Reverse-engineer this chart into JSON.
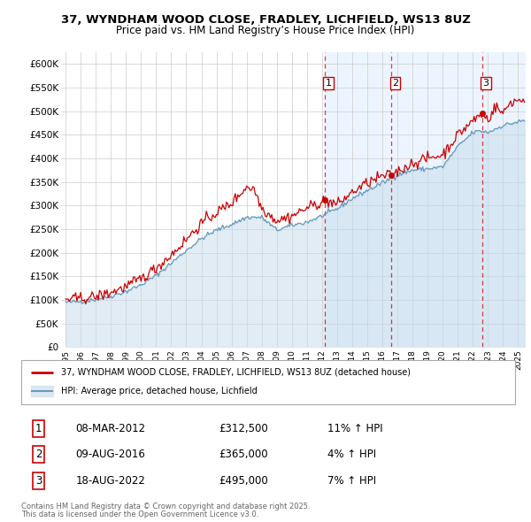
{
  "title_line1": "37, WYNDHAM WOOD CLOSE, FRADLEY, LICHFIELD, WS13 8UZ",
  "title_line2": "Price paid vs. HM Land Registry’s House Price Index (HPI)",
  "legend_label_red": "37, WYNDHAM WOOD CLOSE, FRADLEY, LICHFIELD, WS13 8UZ (detached house)",
  "legend_label_blue": "HPI: Average price, detached house, Lichfield",
  "footer_line1": "Contains HM Land Registry data © Crown copyright and database right 2025.",
  "footer_line2": "This data is licensed under the Open Government Licence v3.0.",
  "transactions": [
    {
      "num": 1,
      "date": "08-MAR-2012",
      "price": 312500,
      "pct": "11%",
      "direction": "↑"
    },
    {
      "num": 2,
      "date": "09-AUG-2016",
      "price": 365000,
      "pct": "4%",
      "direction": "↑"
    },
    {
      "num": 3,
      "date": "18-AUG-2022",
      "price": 495000,
      "pct": "7%",
      "direction": "↑"
    }
  ],
  "transaction_years": [
    2012.18,
    2016.6,
    2022.62
  ],
  "transaction_prices": [
    312500,
    365000,
    495000
  ],
  "ylim": [
    0,
    625000
  ],
  "yticks": [
    0,
    50000,
    100000,
    150000,
    200000,
    250000,
    300000,
    350000,
    400000,
    450000,
    500000,
    550000,
    600000
  ],
  "color_red": "#cc0000",
  "color_blue_line": "#6699bb",
  "color_blue_fill": "#c5daea",
  "color_bg_shaded": "#ddeeff",
  "color_grid": "#cccccc",
  "background_color": "#ffffff",
  "chart_bg": "#f8f8f8"
}
